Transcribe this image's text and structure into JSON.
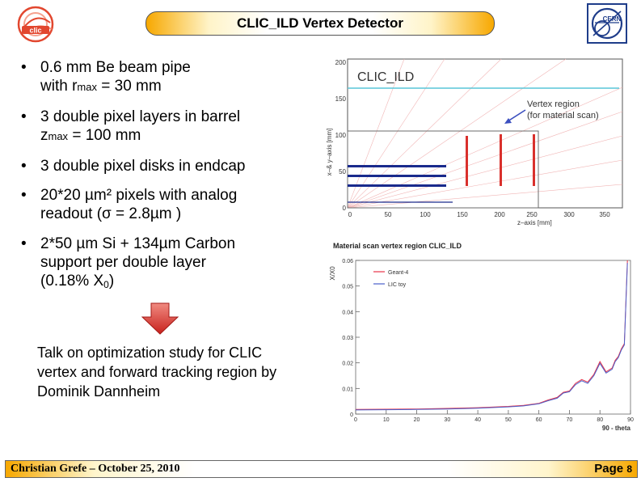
{
  "header": {
    "title": "CLIC_ILD Vertex Detector"
  },
  "logos": {
    "left": "clic-logo",
    "right": "cern-logo",
    "right_text": "CERN"
  },
  "bullets": [
    {
      "a": "0.6 mm Be beam pipe",
      "b_pre": "with r",
      "b_sub": "max",
      "b_post": " = 30 mm"
    },
    {
      "a": "3 double pixel layers in barrel",
      "b_pre": "z",
      "b_sub": "max",
      "b_post": " = 100 mm"
    },
    {
      "a": "3 double pixel disks in endcap"
    },
    {
      "a": "20*20 µm² pixels with analog",
      "b": "readout (σ = 2.8µm )"
    },
    {
      "a": "2*50 µm Si + 134µm Carbon",
      "b": "support per double layer",
      "c_pre": "(0.18% X",
      "c_sub": "0",
      "c_post": ")"
    }
  ],
  "bullet_symbol": "•",
  "talk_note": {
    "line1": "Talk on optimization study for CLIC",
    "line2": "vertex and forward tracking region by",
    "line3": "Dominik Dannheim"
  },
  "figure_layout": {
    "label": "CLIC_ILD",
    "ylabel": "x–& y–axis [mm]",
    "xlabel": "z–axis [mm]",
    "annotation1": "Vertex region",
    "annotation2": "(for material scan)",
    "xticks": [
      "0",
      "50",
      "100",
      "150",
      "200",
      "250",
      "300",
      "350"
    ],
    "yticks": [
      "0",
      "50",
      "100",
      "150",
      "200"
    ]
  },
  "chart_data": {
    "type": "line",
    "title": "Material scan vertex region CLIC_ILD",
    "xlabel": "90 - theta",
    "ylabel": "X/X0",
    "xlim": [
      0,
      90
    ],
    "ylim": [
      0,
      0.06
    ],
    "xticks": [
      "0",
      "10",
      "20",
      "30",
      "40",
      "50",
      "60",
      "70",
      "80",
      "90"
    ],
    "yticks": [
      "0",
      "0.01",
      "0.02",
      "0.03",
      "0.04",
      "0.05",
      "0.06"
    ],
    "legend_position": "top-left",
    "series": [
      {
        "name": "Geant-4",
        "color": "#e8334a",
        "x": [
          0,
          10,
          20,
          30,
          40,
          50,
          55,
          60,
          63,
          66,
          68,
          70,
          72,
          74,
          76,
          78,
          80,
          82,
          84,
          85,
          86,
          87,
          88,
          89
        ],
        "y": [
          0.0018,
          0.0019,
          0.002,
          0.0022,
          0.0025,
          0.003,
          0.0034,
          0.0042,
          0.0055,
          0.0065,
          0.0085,
          0.009,
          0.012,
          0.0135,
          0.0125,
          0.0155,
          0.0205,
          0.0165,
          0.018,
          0.021,
          0.0225,
          0.0255,
          0.0275,
          0.06
        ]
      },
      {
        "name": "LIC toy",
        "color": "#4a5fc9",
        "x": [
          0,
          10,
          20,
          30,
          40,
          50,
          55,
          60,
          63,
          66,
          68,
          70,
          72,
          74,
          76,
          78,
          80,
          82,
          84,
          85,
          86,
          87,
          88,
          89
        ],
        "y": [
          0.0016,
          0.0017,
          0.0018,
          0.002,
          0.0023,
          0.0028,
          0.0032,
          0.004,
          0.0052,
          0.0062,
          0.0082,
          0.0087,
          0.0115,
          0.013,
          0.012,
          0.015,
          0.0198,
          0.016,
          0.0175,
          0.0205,
          0.022,
          0.025,
          0.027,
          0.059
        ]
      }
    ]
  },
  "footer": {
    "author_date": "Christian Grefe – October 25, 2010",
    "page_label": "Page ",
    "page_number": "8"
  },
  "colors": {
    "accent_orange": "#f7a800",
    "clic_red": "#e2472f",
    "cern_blue": "#1f3d8a",
    "arrow_red": "#d9302c"
  }
}
